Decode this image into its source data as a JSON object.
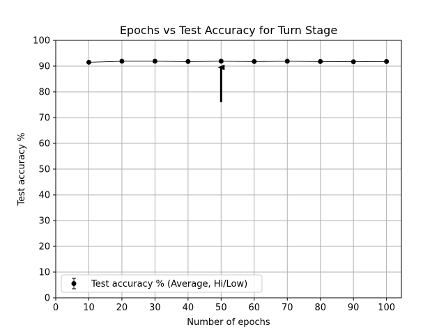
{
  "chart_data": {
    "type": "line",
    "title": "Epochs vs Test Accuracy for Turn Stage",
    "xlabel": "Number of epochs",
    "ylabel": "Test accuracy %",
    "xlim": [
      0,
      104.5
    ],
    "ylim": [
      0,
      100
    ],
    "xticks": [
      0,
      10,
      20,
      30,
      40,
      50,
      60,
      70,
      80,
      90,
      100
    ],
    "yticks": [
      0,
      10,
      20,
      30,
      40,
      50,
      60,
      70,
      80,
      90,
      100
    ],
    "grid": true,
    "legend_position": "lower-left",
    "series": [
      {
        "name": "Test accuracy % (Average, Hi/Low)",
        "color": "#000000",
        "marker": "circle",
        "error_bars": true,
        "x": [
          10,
          20,
          30,
          40,
          50,
          60,
          70,
          80,
          90,
          100
        ],
        "y": [
          91.5,
          91.9,
          91.9,
          91.8,
          91.9,
          91.8,
          91.9,
          91.8,
          91.7,
          91.8
        ],
        "low": [
          91.1,
          91.6,
          91.6,
          91.5,
          91.6,
          91.5,
          91.6,
          91.5,
          91.4,
          91.5
        ],
        "high": [
          91.9,
          92.2,
          92.2,
          92.1,
          92.2,
          92.1,
          92.2,
          92.1,
          92.0,
          92.1
        ]
      }
    ],
    "annotations": [
      {
        "type": "arrow",
        "x": 50,
        "y_from": 76,
        "y_to": 89.5,
        "color": "#000000"
      }
    ]
  }
}
